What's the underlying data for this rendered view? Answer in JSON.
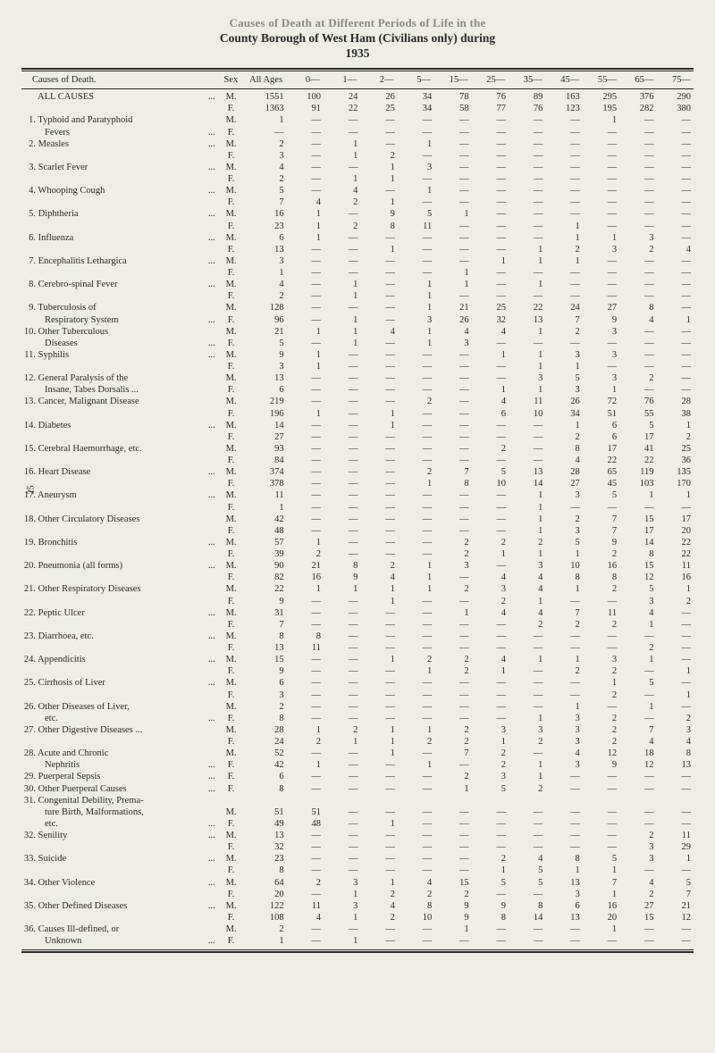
{
  "title": {
    "line1": "Causes of Death at Different Periods of Life in the",
    "line2": "County Borough of West Ham (Civilians only) during",
    "year": "1935"
  },
  "side_page": "25",
  "header": {
    "causes": "Causes of Death.",
    "sex": "Sex",
    "allages": "All Ages",
    "cols": [
      "0—",
      "1—",
      "2—",
      "5—",
      "15—",
      "25—",
      "35—",
      "45—",
      "55—",
      "65—",
      "75—"
    ]
  },
  "rows": [
    {
      "label": "ALL CAUSES",
      "dots": "...",
      "m": [
        "1551",
        "100",
        "24",
        "26",
        "34",
        "78",
        "76",
        "89",
        "163",
        "295",
        "376",
        "290"
      ],
      "f": [
        "1363",
        "91",
        "22",
        "25",
        "34",
        "58",
        "77",
        "76",
        "123",
        "195",
        "282",
        "380"
      ]
    },
    {
      "num": "1.",
      "label": "Typhoid and Paratyphoid",
      "cont": "Fevers",
      "dots": "...",
      "m": [
        "1",
        "—",
        "—",
        "—",
        "—",
        "—",
        "—",
        "—",
        "—",
        "1",
        "—",
        "—"
      ],
      "f": [
        "—",
        "—",
        "—",
        "—",
        "—",
        "—",
        "—",
        "—",
        "—",
        "—",
        "—",
        "—"
      ]
    },
    {
      "num": "2.",
      "label": "Measles",
      "dots": "...",
      "m": [
        "2",
        "—",
        "1",
        "—",
        "1",
        "—",
        "—",
        "—",
        "—",
        "—",
        "—",
        "—"
      ],
      "f": [
        "3",
        "—",
        "1",
        "2",
        "—",
        "—",
        "—",
        "—",
        "—",
        "—",
        "—",
        "—"
      ]
    },
    {
      "num": "3.",
      "label": "Scarlet Fever",
      "dots": "...",
      "m": [
        "4",
        "—",
        "—",
        "1",
        "3",
        "—",
        "—",
        "—",
        "—",
        "—",
        "—",
        "—"
      ],
      "f": [
        "2",
        "—",
        "1",
        "1",
        "—",
        "—",
        "—",
        "—",
        "—",
        "—",
        "—",
        "—"
      ]
    },
    {
      "num": "4.",
      "label": "Whooping Cough",
      "dots": "...",
      "m": [
        "5",
        "—",
        "4",
        "—",
        "1",
        "—",
        "—",
        "—",
        "—",
        "—",
        "—",
        "—"
      ],
      "f": [
        "7",
        "4",
        "2",
        "1",
        "—",
        "—",
        "—",
        "—",
        "—",
        "—",
        "—",
        "—"
      ]
    },
    {
      "num": "5.",
      "label": "Diphtheria",
      "dots": "...",
      "m": [
        "16",
        "1",
        "—",
        "9",
        "5",
        "1",
        "—",
        "—",
        "—",
        "—",
        "—",
        "—"
      ],
      "f": [
        "23",
        "1",
        "2",
        "8",
        "11",
        "—",
        "—",
        "—",
        "1",
        "—",
        "—",
        "—"
      ]
    },
    {
      "num": "6.",
      "label": "Influenza",
      "dots": "...",
      "m": [
        "6",
        "1",
        "—",
        "—",
        "—",
        "—",
        "—",
        "—",
        "1",
        "1",
        "3",
        "—"
      ],
      "f": [
        "13",
        "—",
        "—",
        "1",
        "—",
        "—",
        "—",
        "1",
        "2",
        "3",
        "2",
        "4"
      ]
    },
    {
      "num": "7.",
      "label": "Encephalitis Lethargica",
      "dots": "...",
      "m": [
        "3",
        "—",
        "—",
        "—",
        "—",
        "—",
        "1",
        "1",
        "1",
        "—",
        "—",
        "—"
      ],
      "f": [
        "1",
        "—",
        "—",
        "—",
        "—",
        "1",
        "—",
        "—",
        "—",
        "—",
        "—",
        "—"
      ]
    },
    {
      "num": "8.",
      "label": "Cerebro-spinal Fever",
      "dots": "...",
      "m": [
        "4",
        "—",
        "1",
        "—",
        "1",
        "1",
        "—",
        "1",
        "—",
        "—",
        "—",
        "—"
      ],
      "f": [
        "2",
        "—",
        "1",
        "—",
        "1",
        "—",
        "—",
        "—",
        "—",
        "—",
        "—",
        "—"
      ]
    },
    {
      "num": "9.",
      "label": "Tuberculosis of",
      "cont": "Respiratory System",
      "dots": "...",
      "m": [
        "128",
        "—",
        "—",
        "—",
        "1",
        "21",
        "25",
        "22",
        "24",
        "27",
        "8",
        "—"
      ],
      "f": [
        "96",
        "—",
        "1",
        "—",
        "3",
        "26",
        "32",
        "13",
        "7",
        "9",
        "4",
        "1"
      ]
    },
    {
      "num": "10.",
      "label": "Other Tuberculous",
      "cont": "Diseases",
      "dots": "...",
      "m": [
        "21",
        "1",
        "1",
        "4",
        "1",
        "4",
        "4",
        "1",
        "2",
        "3",
        "—",
        "—"
      ],
      "f": [
        "5",
        "—",
        "1",
        "—",
        "1",
        "3",
        "—",
        "—",
        "—",
        "—",
        "—",
        "—"
      ]
    },
    {
      "num": "11.",
      "label": "Syphilis",
      "dots": "...",
      "m": [
        "9",
        "1",
        "—",
        "—",
        "—",
        "—",
        "1",
        "1",
        "3",
        "3",
        "—",
        "—"
      ],
      "f": [
        "3",
        "1",
        "—",
        "—",
        "—",
        "—",
        "—",
        "1",
        "1",
        "—",
        "—",
        "—"
      ]
    },
    {
      "num": "12.",
      "label": "General Paralysis of the",
      "cont": "Insane, Tabes Dorsalis ...",
      "dots": "",
      "m": [
        "13",
        "—",
        "—",
        "—",
        "—",
        "—",
        "—",
        "3",
        "5",
        "3",
        "2",
        "—"
      ],
      "f": [
        "6",
        "—",
        "—",
        "—",
        "—",
        "—",
        "1",
        "1",
        "3",
        "1",
        "—",
        "—"
      ]
    },
    {
      "num": "13.",
      "label": "Cancer, Malignant Disease",
      "dots": "",
      "m": [
        "219",
        "—",
        "—",
        "—",
        "2",
        "—",
        "4",
        "11",
        "26",
        "72",
        "76",
        "28"
      ],
      "f": [
        "196",
        "1",
        "—",
        "1",
        "—",
        "—",
        "6",
        "10",
        "34",
        "51",
        "55",
        "38"
      ]
    },
    {
      "num": "14.",
      "label": "Diabetes",
      "dots": "...",
      "m": [
        "14",
        "—",
        "—",
        "1",
        "—",
        "—",
        "—",
        "—",
        "1",
        "6",
        "5",
        "1"
      ],
      "f": [
        "27",
        "—",
        "—",
        "—",
        "—",
        "—",
        "—",
        "—",
        "2",
        "6",
        "17",
        "2"
      ]
    },
    {
      "num": "15.",
      "label": "Cerebral Haemorrhage, etc.",
      "dots": "",
      "m": [
        "93",
        "—",
        "—",
        "—",
        "—",
        "—",
        "2",
        "—",
        "8",
        "17",
        "41",
        "25"
      ],
      "f": [
        "84",
        "—",
        "—",
        "—",
        "—",
        "—",
        "—",
        "—",
        "4",
        "22",
        "22",
        "36"
      ]
    },
    {
      "num": "16.",
      "label": "Heart Disease",
      "dots": "...",
      "m": [
        "374",
        "—",
        "—",
        "—",
        "2",
        "7",
        "5",
        "13",
        "28",
        "65",
        "119",
        "135"
      ],
      "f": [
        "378",
        "—",
        "—",
        "—",
        "1",
        "8",
        "10",
        "14",
        "27",
        "45",
        "103",
        "170"
      ]
    },
    {
      "num": "17.",
      "label": "Aneurysm",
      "dots": "...",
      "m": [
        "11",
        "—",
        "—",
        "—",
        "—",
        "—",
        "—",
        "1",
        "3",
        "5",
        "1",
        "1"
      ],
      "f": [
        "1",
        "—",
        "—",
        "—",
        "—",
        "—",
        "—",
        "1",
        "—",
        "—",
        "—",
        "—"
      ]
    },
    {
      "num": "18.",
      "label": "Other Circulatory Diseases",
      "dots": "",
      "m": [
        "42",
        "—",
        "—",
        "—",
        "—",
        "—",
        "—",
        "1",
        "2",
        "7",
        "15",
        "17"
      ],
      "f": [
        "48",
        "—",
        "—",
        "—",
        "—",
        "—",
        "—",
        "1",
        "3",
        "7",
        "17",
        "20"
      ]
    },
    {
      "num": "19.",
      "label": "Bronchitis",
      "dots": "...",
      "m": [
        "57",
        "1",
        "—",
        "—",
        "—",
        "2",
        "2",
        "2",
        "5",
        "9",
        "14",
        "22"
      ],
      "f": [
        "39",
        "2",
        "—",
        "—",
        "—",
        "2",
        "1",
        "1",
        "1",
        "2",
        "8",
        "22"
      ]
    },
    {
      "num": "20.",
      "label": "Pneumonia (all forms)",
      "dots": "...",
      "m": [
        "90",
        "21",
        "8",
        "2",
        "1",
        "3",
        "—",
        "3",
        "10",
        "16",
        "15",
        "11"
      ],
      "f": [
        "82",
        "16",
        "9",
        "4",
        "1",
        "—",
        "4",
        "4",
        "8",
        "8",
        "12",
        "16"
      ]
    },
    {
      "num": "21.",
      "label": "Other Respiratory Diseases",
      "dots": "",
      "m": [
        "22",
        "1",
        "1",
        "1",
        "1",
        "2",
        "3",
        "4",
        "1",
        "2",
        "5",
        "1"
      ],
      "f": [
        "9",
        "—",
        "—",
        "1",
        "—",
        "—",
        "2",
        "1",
        "—",
        "—",
        "3",
        "2"
      ]
    },
    {
      "num": "22.",
      "label": "Peptic Ulcer",
      "dots": "...",
      "m": [
        "31",
        "—",
        "—",
        "—",
        "—",
        "1",
        "4",
        "4",
        "7",
        "11",
        "4",
        "—"
      ],
      "f": [
        "7",
        "—",
        "—",
        "—",
        "—",
        "—",
        "—",
        "2",
        "2",
        "2",
        "1",
        "—"
      ]
    },
    {
      "num": "23.",
      "label": "Diarrhoea, etc.",
      "dots": "...",
      "m": [
        "8",
        "8",
        "—",
        "—",
        "—",
        "—",
        "—",
        "—",
        "—",
        "—",
        "—",
        "—"
      ],
      "f": [
        "13",
        "11",
        "—",
        "—",
        "—",
        "—",
        "—",
        "—",
        "—",
        "—",
        "2",
        "—"
      ]
    },
    {
      "num": "24.",
      "label": "Appendicitis",
      "dots": "...",
      "m": [
        "15",
        "—",
        "—",
        "1",
        "2",
        "2",
        "4",
        "1",
        "1",
        "3",
        "1",
        "—"
      ],
      "f": [
        "9",
        "—",
        "—",
        "—",
        "1",
        "2",
        "1",
        "—",
        "2",
        "2",
        "—",
        "1"
      ]
    },
    {
      "num": "25.",
      "label": "Cirrhosis of Liver",
      "dots": "...",
      "m": [
        "6",
        "—",
        "—",
        "—",
        "—",
        "—",
        "—",
        "—",
        "—",
        "1",
        "5",
        "—"
      ],
      "f": [
        "3",
        "—",
        "—",
        "—",
        "—",
        "—",
        "—",
        "—",
        "—",
        "2",
        "—",
        "1"
      ]
    },
    {
      "num": "26.",
      "label": "Other Diseases of Liver,",
      "cont": "etc.",
      "dots": "...",
      "m": [
        "2",
        "—",
        "—",
        "—",
        "—",
        "—",
        "—",
        "—",
        "1",
        "—",
        "1",
        "—"
      ],
      "f": [
        "8",
        "—",
        "—",
        "—",
        "—",
        "—",
        "—",
        "1",
        "3",
        "2",
        "—",
        "2"
      ]
    },
    {
      "num": "27.",
      "label": "Other Digestive Diseases ...",
      "dots": "",
      "m": [
        "28",
        "1",
        "2",
        "1",
        "1",
        "2",
        "3",
        "3",
        "3",
        "2",
        "7",
        "3"
      ],
      "f": [
        "24",
        "2",
        "1",
        "1",
        "2",
        "2",
        "1",
        "2",
        "3",
        "2",
        "4",
        "4"
      ]
    },
    {
      "num": "28.",
      "label": "Acute and Chronic",
      "cont": "Nephritis",
      "dots": "...",
      "m": [
        "52",
        "—",
        "—",
        "1",
        "—",
        "7",
        "2",
        "—",
        "4",
        "12",
        "18",
        "8"
      ],
      "f": [
        "42",
        "1",
        "—",
        "—",
        "1",
        "—",
        "2",
        "1",
        "3",
        "9",
        "12",
        "13"
      ]
    },
    {
      "num": "29.",
      "label": "Puerperal Sepsis",
      "dots": "...",
      "fonly": true,
      "f": [
        "6",
        "—",
        "—",
        "—",
        "—",
        "2",
        "3",
        "1",
        "—",
        "—",
        "—",
        "—"
      ]
    },
    {
      "num": "30.",
      "label": "Other Puerperal Causes",
      "dots": "...",
      "fonly": true,
      "f": [
        "8",
        "—",
        "—",
        "—",
        "—",
        "1",
        "5",
        "2",
        "—",
        "—",
        "—",
        "—"
      ]
    },
    {
      "num": "31.",
      "label": "Congenital Debility, Prema-",
      "cont": "ture Birth, Malformations,",
      "cont2": "etc.",
      "dots": "...",
      "m": [
        "51",
        "51",
        "—",
        "—",
        "—",
        "—",
        "—",
        "—",
        "—",
        "—",
        "—",
        "—"
      ],
      "f": [
        "49",
        "48",
        "—",
        "1",
        "—",
        "—",
        "—",
        "—",
        "—",
        "—",
        "—",
        "—"
      ]
    },
    {
      "num": "32.",
      "label": "Senility",
      "dots": "...",
      "m": [
        "13",
        "—",
        "—",
        "—",
        "—",
        "—",
        "—",
        "—",
        "—",
        "—",
        "2",
        "11"
      ],
      "f": [
        "32",
        "—",
        "—",
        "—",
        "—",
        "—",
        "—",
        "—",
        "—",
        "—",
        "3",
        "29"
      ]
    },
    {
      "num": "33.",
      "label": "Suicide",
      "dots": "...",
      "m": [
        "23",
        "—",
        "—",
        "—",
        "—",
        "—",
        "2",
        "4",
        "8",
        "5",
        "3",
        "1"
      ],
      "f": [
        "8",
        "—",
        "—",
        "—",
        "—",
        "—",
        "1",
        "5",
        "1",
        "1",
        "—",
        "—"
      ]
    },
    {
      "num": "34.",
      "label": "Other Violence",
      "dots": "...",
      "m": [
        "64",
        "2",
        "3",
        "1",
        "4",
        "15",
        "5",
        "5",
        "13",
        "7",
        "4",
        "5"
      ],
      "f": [
        "20",
        "—",
        "1",
        "2",
        "2",
        "2",
        "—",
        "—",
        "3",
        "1",
        "2",
        "7"
      ]
    },
    {
      "num": "35.",
      "label": "Other Defined Diseases",
      "dots": "...",
      "m": [
        "122",
        "11",
        "3",
        "4",
        "8",
        "9",
        "9",
        "8",
        "6",
        "16",
        "27",
        "21"
      ],
      "f": [
        "108",
        "4",
        "1",
        "2",
        "10",
        "9",
        "8",
        "14",
        "13",
        "20",
        "15",
        "12"
      ]
    },
    {
      "num": "36.",
      "label": "Causes Ill-defined, or",
      "cont": "Unknown",
      "dots": "...",
      "m": [
        "2",
        "—",
        "—",
        "—",
        "—",
        "1",
        "—",
        "—",
        "—",
        "1",
        "—",
        "—"
      ],
      "f": [
        "1",
        "—",
        "1",
        "—",
        "—",
        "—",
        "—",
        "—",
        "—",
        "—",
        "—",
        "—"
      ]
    }
  ]
}
